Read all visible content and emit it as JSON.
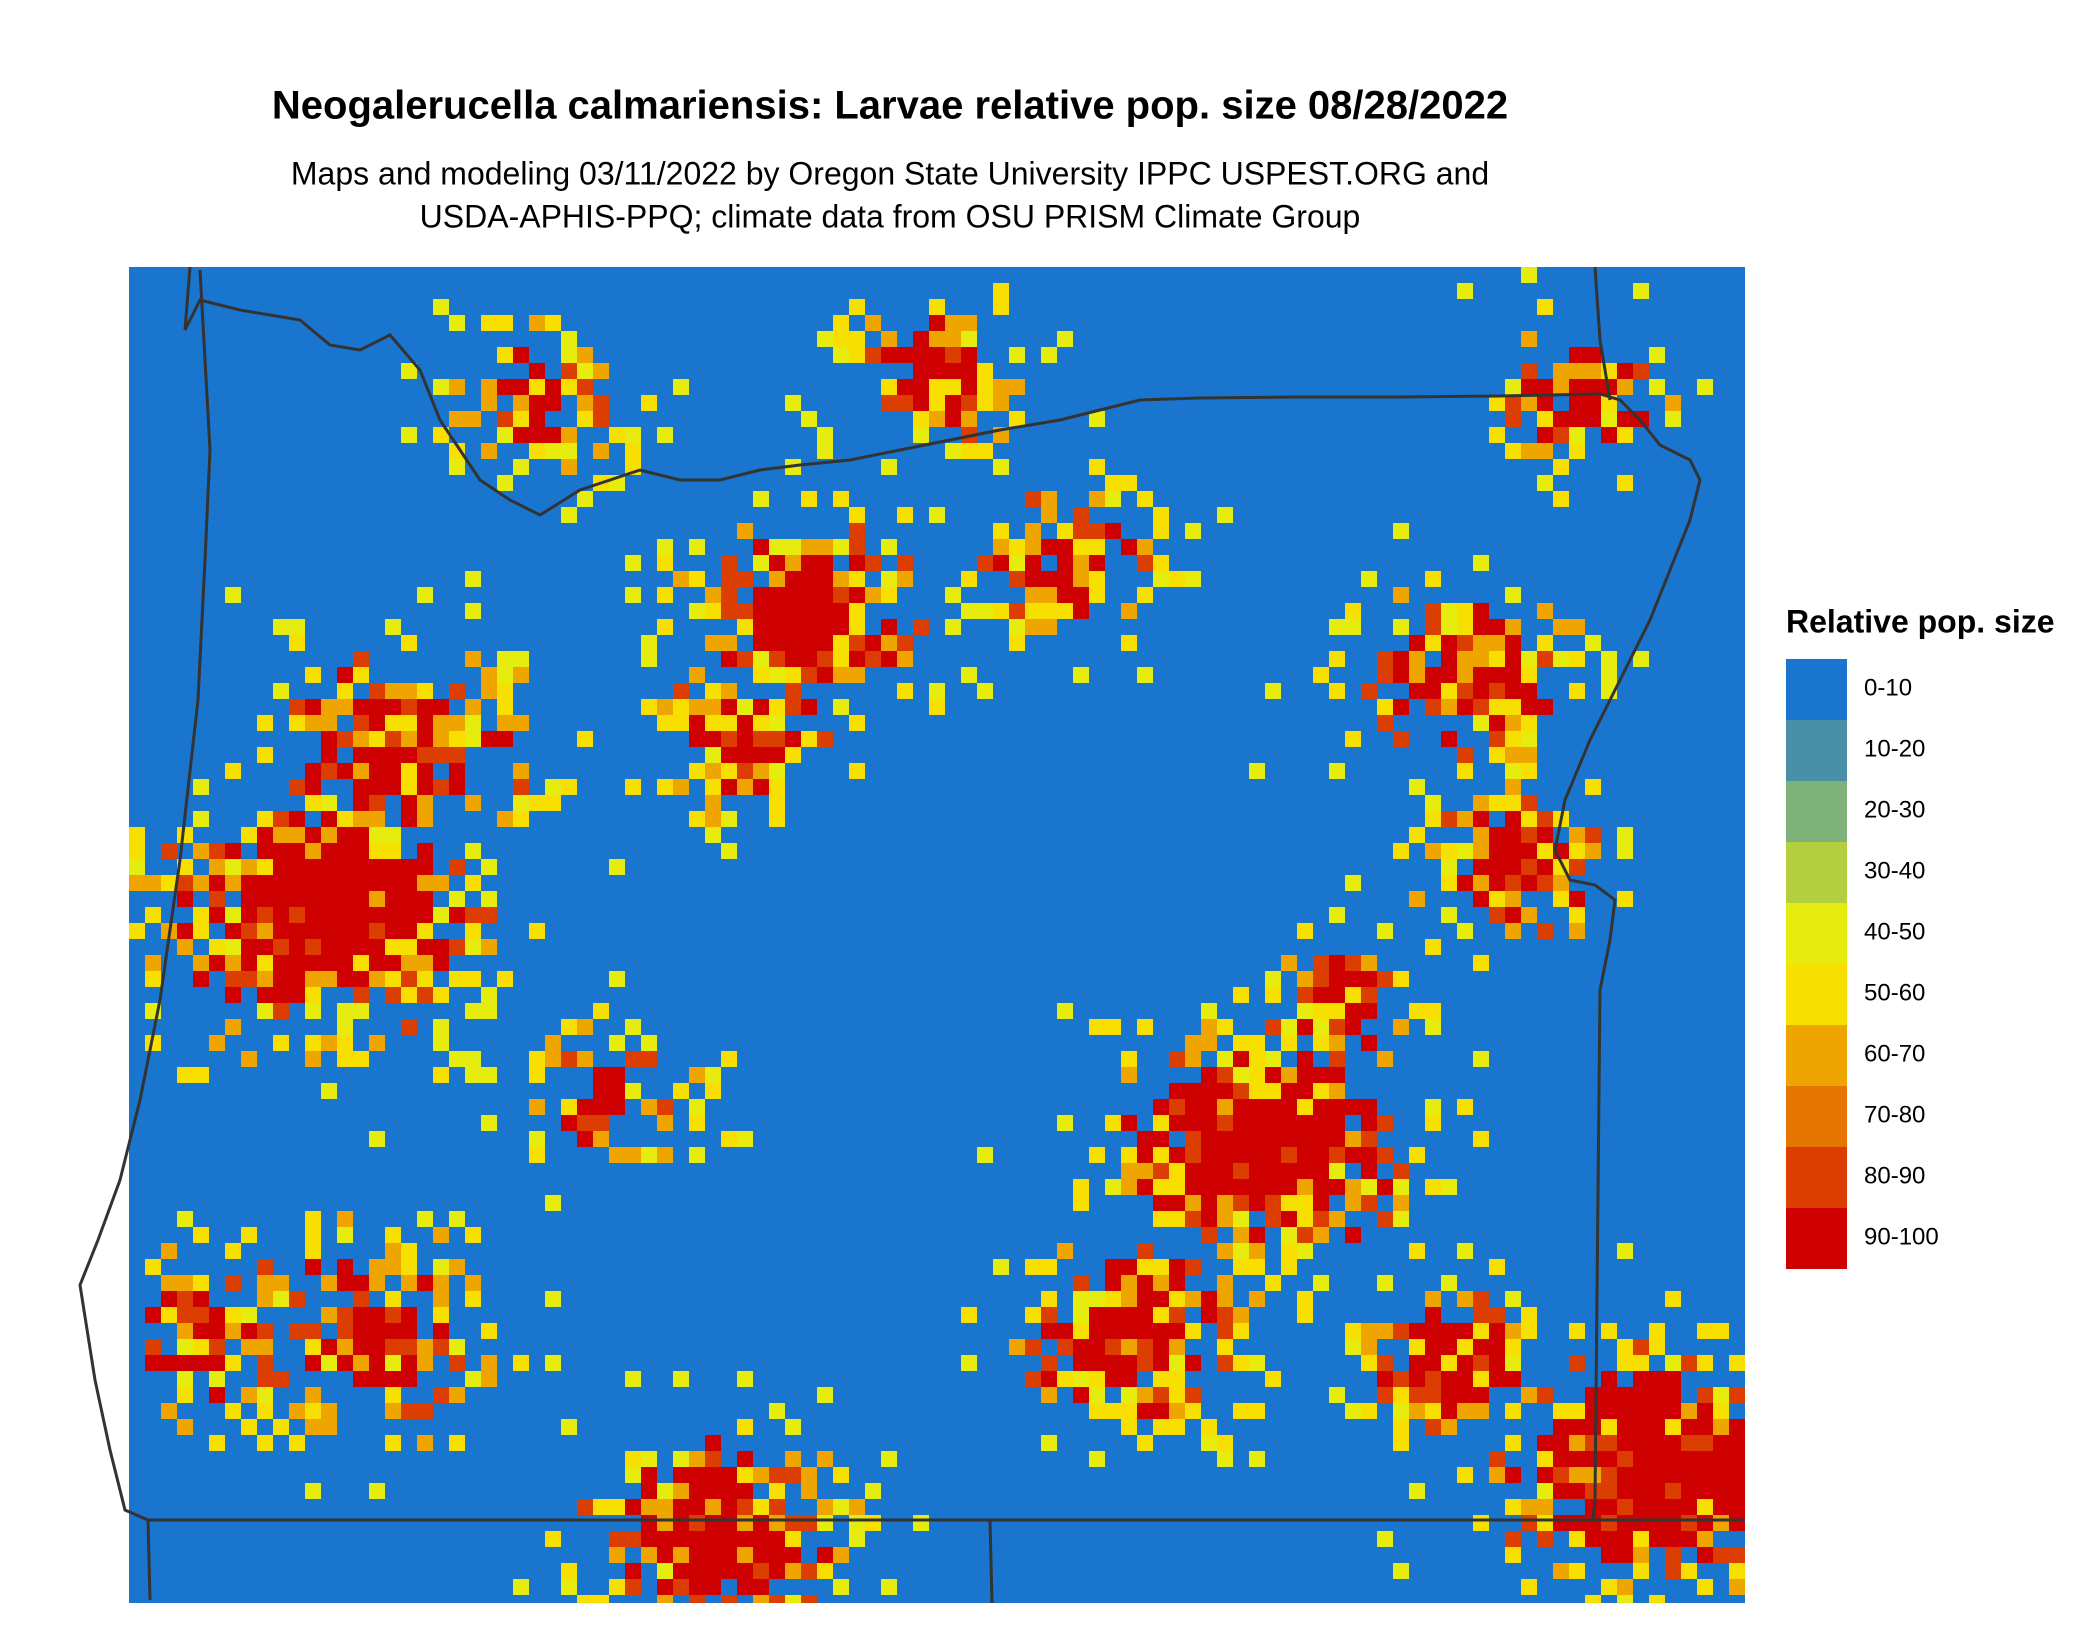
{
  "title": "Neogalerucella calmariensis: Larvae relative pop. size 08/28/2022",
  "subtitle": [
    "Maps and modeling 03/11/2022 by Oregon State University IPPC USPEST.ORG and",
    "USDA-APHIS-PPQ; climate data from OSU PRISM Climate Group"
  ],
  "legend": {
    "title": "Relative pop. size",
    "items": [
      {
        "label": "0-10",
        "color": "#1a75cf"
      },
      {
        "label": "10-20",
        "color": "#4a8fa8"
      },
      {
        "label": "20-30",
        "color": "#7fb17a"
      },
      {
        "label": "30-40",
        "color": "#b3cf3f"
      },
      {
        "label": "40-50",
        "color": "#e6ec0e"
      },
      {
        "label": "50-60",
        "color": "#f7e000"
      },
      {
        "label": "60-70",
        "color": "#eea500"
      },
      {
        "label": "70-80",
        "color": "#e57400"
      },
      {
        "label": "80-90",
        "color": "#dc3d00"
      },
      {
        "label": "90-100",
        "color": "#cf0000"
      }
    ]
  }
}
